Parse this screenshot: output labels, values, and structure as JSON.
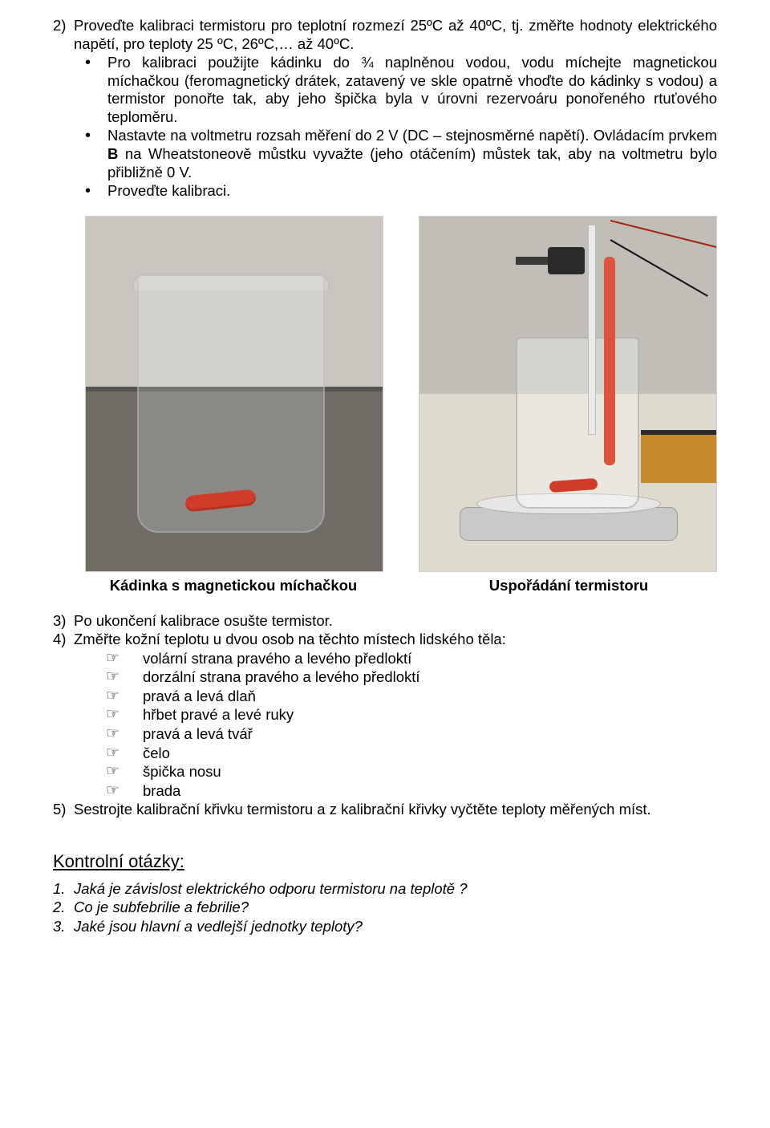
{
  "step2": {
    "marker": "2)",
    "text_a": "Proveďte kalibraci termistoru pro teplotní rozmezí  25ºC až 40ºC, tj. změřte hodnoty elektrického napětí, pro teploty  25 ºC,  26ºC,… až  40ºC.",
    "bul_a": "Pro kalibraci použijte kádinku do ¾ naplněnou vodou, vodu míchejte magnetickou míchačkou (feromagnetický drátek, zatavený ve skle opatrně vhoďte do kádinky s vodou) a termistor ponořte tak, aby jeho špička byla v úrovni rezervoáru ponořeného rtuťového teploměru.",
    "bul_b": "Nastavte na voltmetru rozsah měření do 2 V (DC – stejnosměrné napětí). Ovládacím prvkem ",
    "bul_b_bold": "B",
    "bul_b_tail": " na Wheatstoneově můstku vyvažte (jeho otáčením) můstek tak, aby na voltmetru bylo přibližně 0 V.",
    "bul_c": "Proveďte kalibraci."
  },
  "captions": {
    "left": "Kádinka s magnetickou míchačkou",
    "right": "Uspořádání termistoru"
  },
  "step3": {
    "marker": "3)",
    "text": "Po ukončení kalibrace osušte termistor."
  },
  "step4": {
    "marker": "4)",
    "text": "Změřte kožní teplotu u dvou osob na těchto místech lidského těla:",
    "items": [
      "volární strana pravého a levého předloktí",
      "dorzální strana pravého a levého předloktí",
      "pravá a levá dlaň",
      "hřbet pravé a levé ruky",
      "pravá a levá tvář",
      "čelo",
      "špička nosu",
      "brada"
    ]
  },
  "step5": {
    "marker": "5)",
    "text": "Sestrojte kalibrační křivku termistoru a z kalibrační křivky vyčtěte teploty měřených míst."
  },
  "kontrolni": {
    "heading": "Kontrolní otázky:",
    "items": [
      "Jaká je závislost elektrického odporu termistoru na teplotě ?",
      "Co je subfebrilie a febrilie?",
      "Jaké jsou hlavní a vedlejší jednotky teploty?"
    ],
    "markers": [
      "1.",
      "2.",
      "3."
    ]
  },
  "bullet_char": "•",
  "hand_char": "☞"
}
